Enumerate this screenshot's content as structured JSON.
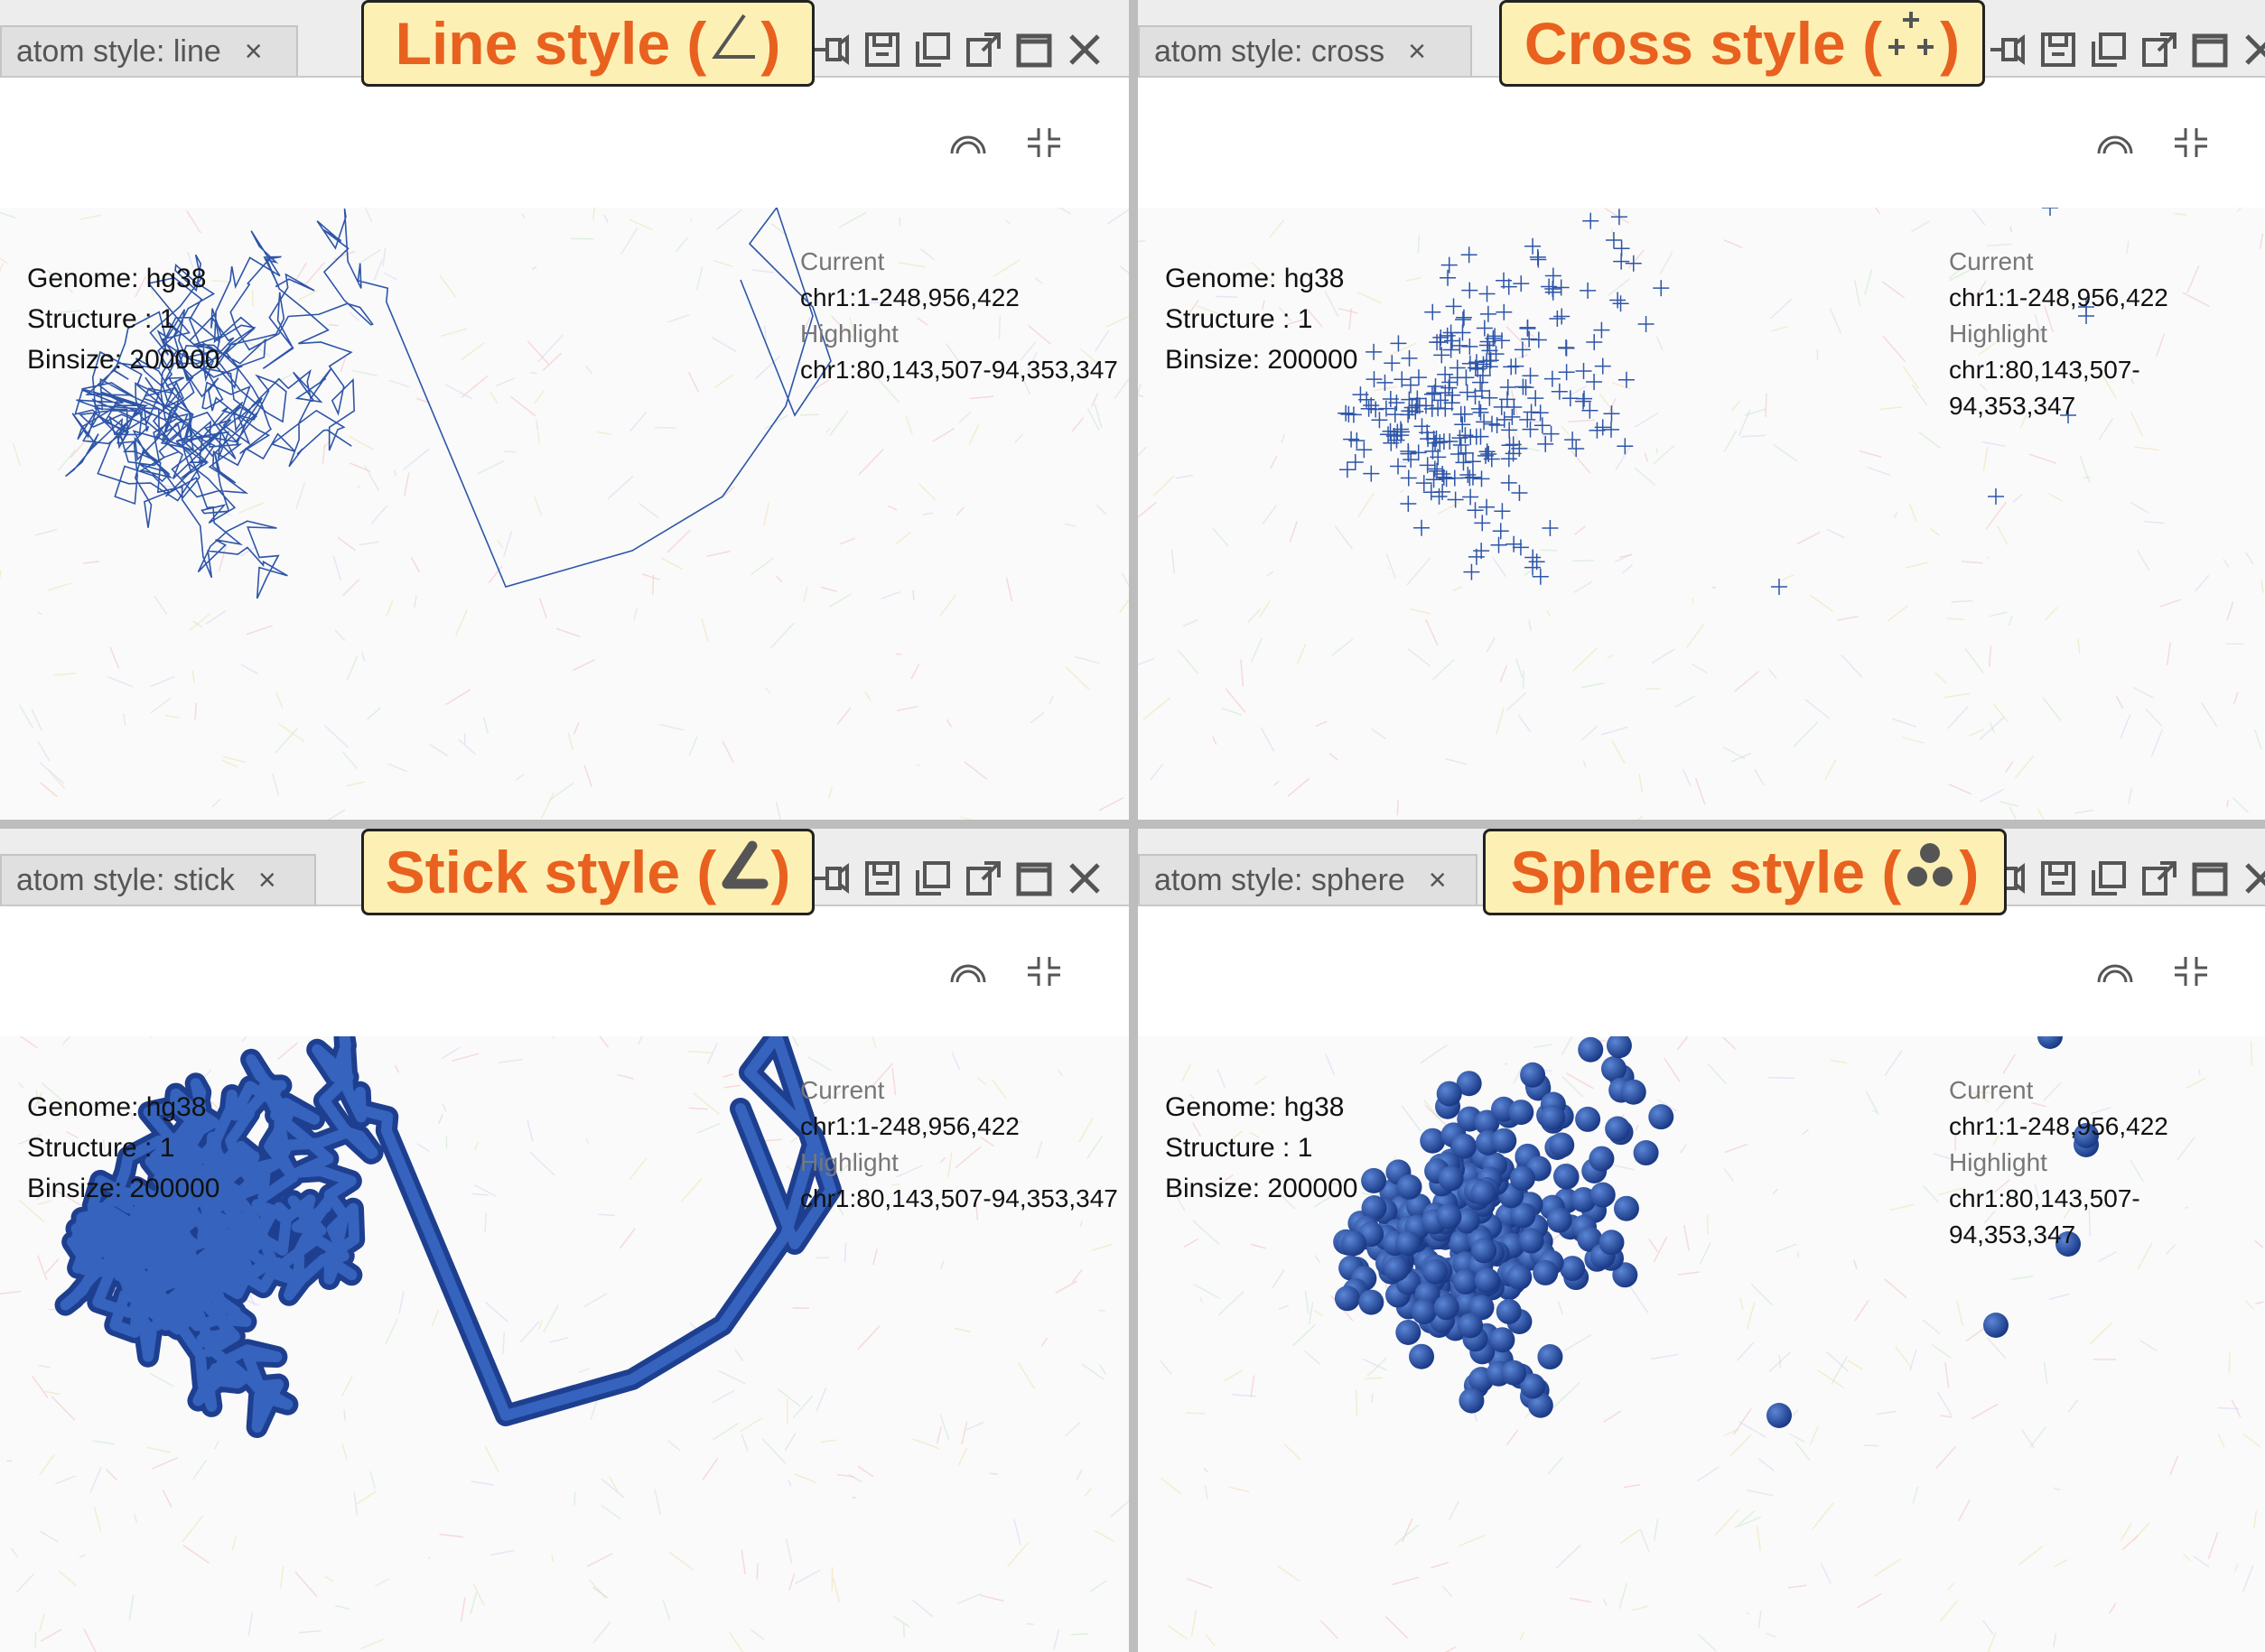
{
  "panels": [
    {
      "tab_label": "atom style: line",
      "tab_close": "×",
      "callout_label": "Line style (",
      "callout_close": ")",
      "callout_icon": "angle-line-icon",
      "genome": "Genome: hg38",
      "structure": "Structure : 1",
      "binsize": "Binsize: 200000",
      "current_label": "Current",
      "current_value": "chr1:1-248,956,422",
      "highlight_label": "Highlight",
      "highlight_value": "chr1:80,143,507-94,353,347"
    },
    {
      "tab_label": "atom style: cross",
      "tab_close": "×",
      "callout_label": "Cross style (",
      "callout_close": ")",
      "callout_icon": "cross-points-icon",
      "genome": "Genome: hg38",
      "structure": "Structure : 1",
      "binsize": "Binsize: 200000",
      "current_label": "Current",
      "current_value": "chr1:1-248,956,422",
      "highlight_label": "Highlight",
      "highlight_value": "chr1:80,143,507-94,353,347"
    },
    {
      "tab_label": "atom style: stick",
      "tab_close": "×",
      "callout_label": "Stick style (",
      "callout_close": ")",
      "callout_icon": "angle-stick-icon",
      "genome": "Genome: hg38",
      "structure": "Structure : 1",
      "binsize": "Binsize: 200000",
      "current_label": "Current",
      "current_value": "chr1:1-248,956,422",
      "highlight_label": "Highlight",
      "highlight_value": "chr1:80,143,507-94,353,347"
    },
    {
      "tab_label": "atom style: sphere",
      "tab_close": "×",
      "callout_label": "Sphere style (",
      "callout_close": ")",
      "callout_icon": "spheres-icon",
      "genome": "Genome: hg38",
      "structure": "Structure : 1",
      "binsize": "Binsize: 200000",
      "current_label": "Current",
      "current_value": "chr1:1-248,956,422",
      "highlight_label": "Highlight",
      "highlight_value": "chr1:80,143,507-94,353,347"
    }
  ],
  "colors": {
    "structure_blue": "#2e55a8",
    "callout_text": "#e8611f",
    "callout_bg": "#fdf0b4"
  },
  "icons": [
    "pin-icon",
    "save-icon",
    "copy-icon",
    "popout-icon",
    "maximize-icon",
    "close-icon",
    "arc-icon",
    "compress-icon"
  ]
}
